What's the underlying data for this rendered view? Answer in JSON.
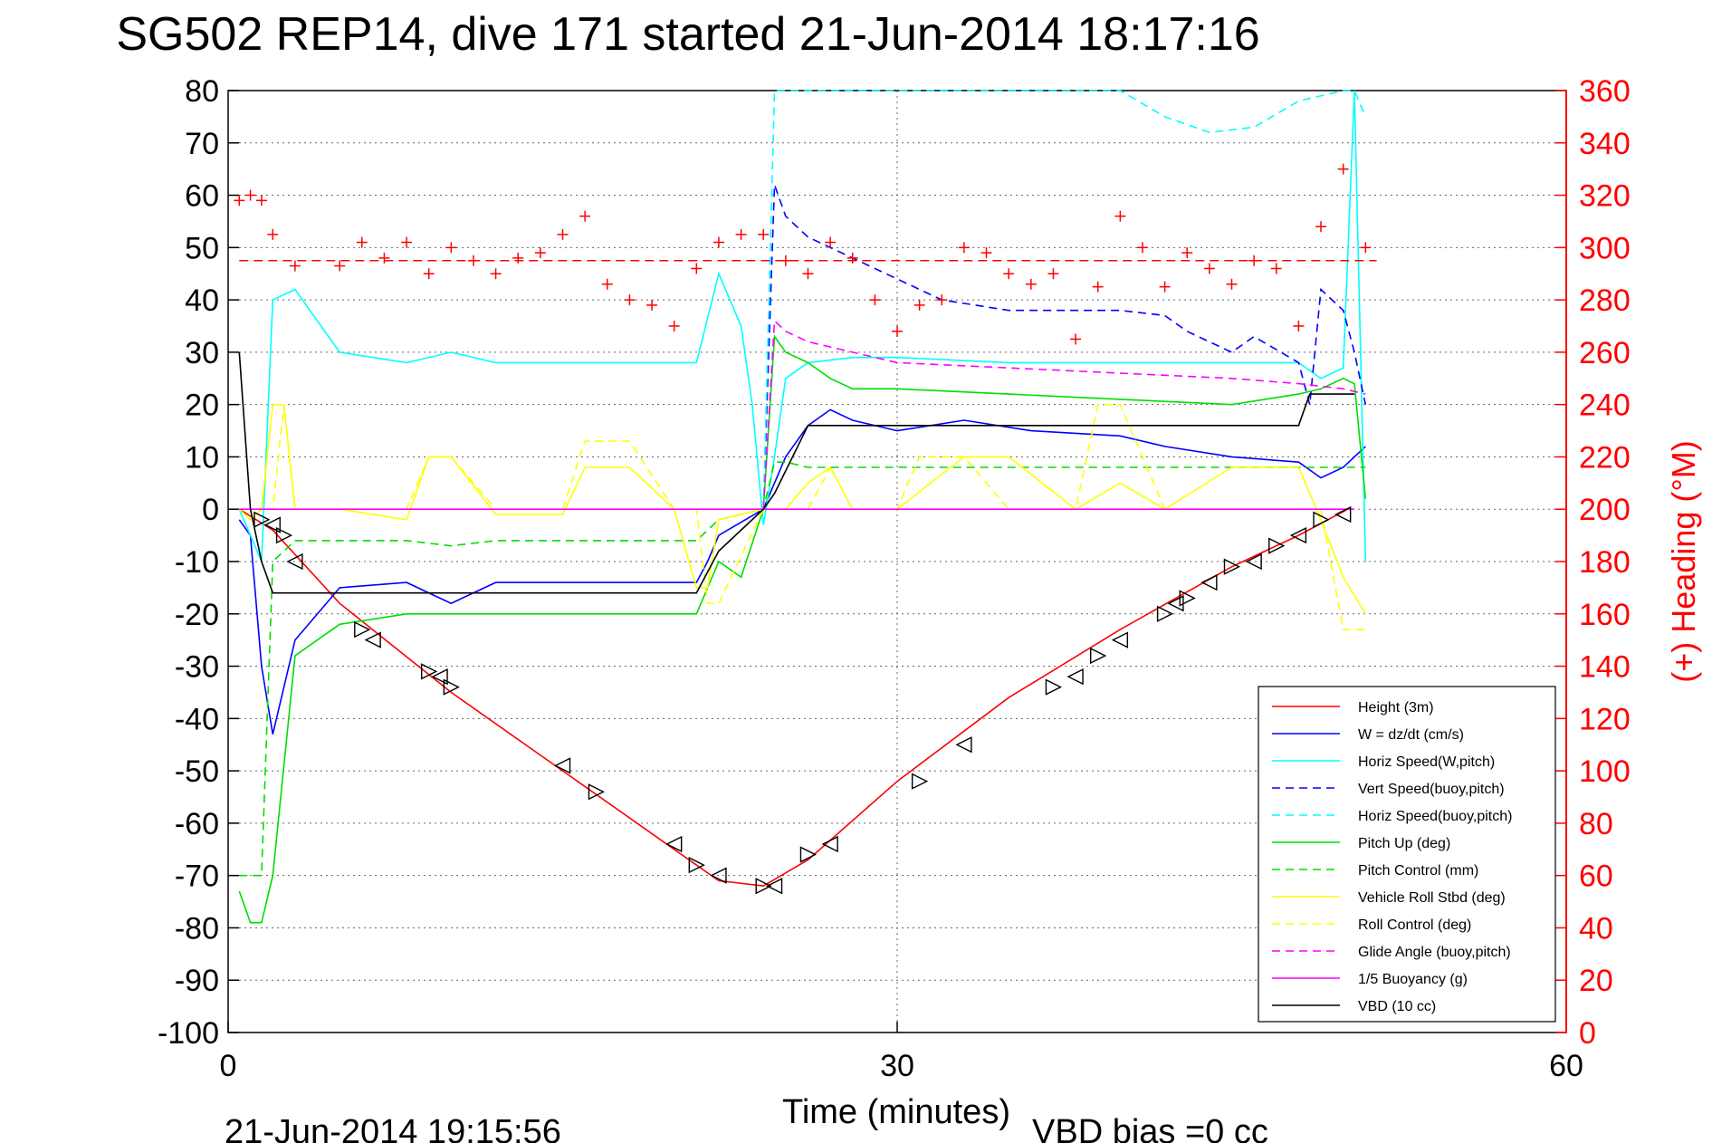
{
  "chart_data": {
    "type": "line",
    "title": "SG502 REP14, dive 171 started 21-Jun-2014 18:17:16",
    "xlabel": "Time (minutes)",
    "ylabel_right": "(+) Heading (°M)",
    "footer_left": "21-Jun-2014 19:15:56",
    "footer_right": "VBD bias =0 cc",
    "xlim": [
      0,
      60
    ],
    "ylim_left": [
      -100,
      80
    ],
    "ylim_right": [
      0,
      360
    ],
    "xticks": [
      "0",
      "30",
      "60"
    ],
    "yticks_left": [
      "80",
      "70",
      "60",
      "50",
      "40",
      "30",
      "20",
      "10",
      "0",
      "-10",
      "-20",
      "-30",
      "-40",
      "-50",
      "-60",
      "-70",
      "-80",
      "-90",
      "-100"
    ],
    "yticks_right": [
      "360",
      "340",
      "320",
      "300",
      "280",
      "260",
      "240",
      "220",
      "200",
      "180",
      "160",
      "140",
      "120",
      "100",
      "80",
      "60",
      "40",
      "20",
      "0"
    ],
    "grid": true,
    "legend_position": "lower-right",
    "colors": {
      "height": "#ff0000",
      "w": "#0000ff",
      "horiz": "#00ffff",
      "pitch": "#00dd00",
      "roll": "#ffff00",
      "glide": "#ff00ff",
      "vbd": "#000000",
      "heading": "#ff0000"
    },
    "legend": [
      {
        "name": "Height (3m)",
        "color": "#ff0000",
        "dash": false
      },
      {
        "name": "W = dz/dt (cm/s)",
        "color": "#0000ff",
        "dash": false
      },
      {
        "name": "Horiz Speed(W,pitch)",
        "color": "#00ffff",
        "dash": false
      },
      {
        "name": "Vert Speed(buoy,pitch)",
        "color": "#0000ff",
        "dash": true
      },
      {
        "name": "Horiz Speed(buoy,pitch)",
        "color": "#00ffff",
        "dash": true
      },
      {
        "name": "Pitch Up (deg)",
        "color": "#00dd00",
        "dash": false
      },
      {
        "name": "Pitch Control (mm)",
        "color": "#00dd00",
        "dash": true
      },
      {
        "name": "Vehicle Roll Stbd (deg)",
        "color": "#ffff00",
        "dash": false
      },
      {
        "name": "Roll Control (deg)",
        "color": "#ffff00",
        "dash": true
      },
      {
        "name": "Glide Angle (buoy,pitch)",
        "color": "#ff00ff",
        "dash": true
      },
      {
        "name": "1/5 Buoyancy (g)",
        "color": "#ff00ff",
        "dash": false
      },
      {
        "name": "VBD (10 cc)",
        "color": "#000000",
        "dash": false
      }
    ],
    "series": [
      {
        "name": "Height (3m)",
        "x": [
          0.5,
          2,
          5,
          10,
          15,
          20,
          22,
          24,
          26,
          30,
          35,
          40,
          45,
          48,
          50.2
        ],
        "y": [
          0,
          -4,
          -18,
          -35,
          -50,
          -65,
          -71,
          -72,
          -67,
          -52,
          -36,
          -23,
          -11,
          -5,
          0
        ]
      },
      {
        "name": "W = dz/dt (cm/s)",
        "x": [
          0.5,
          1,
          1.5,
          2,
          3,
          5,
          8,
          10,
          12,
          15,
          18,
          21,
          21.5,
          22,
          24,
          24.5,
          25,
          26,
          27,
          28,
          30,
          33,
          36,
          40,
          42,
          45,
          48,
          49,
          50,
          50.5,
          51
        ],
        "y": [
          -2,
          -5,
          -30,
          -43,
          -25,
          -15,
          -14,
          -18,
          -14,
          -14,
          -14,
          -14,
          -10,
          -5,
          0,
          5,
          10,
          16,
          19,
          17,
          15,
          17,
          15,
          14,
          12,
          10,
          9,
          6,
          8,
          10,
          12
        ]
      },
      {
        "name": "Horiz Speed(W,pitch)",
        "x": [
          0.5,
          1.5,
          2,
          3,
          5,
          8,
          10,
          12,
          15,
          18,
          21,
          22,
          22.5,
          23,
          23.5,
          24,
          24.5,
          25,
          26,
          28,
          30,
          35,
          40,
          45,
          48,
          49,
          50,
          50.5,
          51
        ],
        "y": [
          0,
          -10,
          40,
          42,
          30,
          28,
          30,
          28,
          28,
          28,
          28,
          45,
          40,
          35,
          20,
          -3,
          10,
          25,
          28,
          29,
          29,
          28,
          28,
          28,
          28,
          25,
          27,
          80,
          -10
        ]
      },
      {
        "name": "Vert Speed(buoy,pitch)",
        "x": [
          24,
          24.5,
          25,
          26,
          28,
          30,
          32,
          35,
          40,
          42,
          43,
          45,
          46,
          48,
          48.5,
          49,
          50,
          50.5,
          51
        ],
        "y": [
          0,
          62,
          56,
          52,
          48,
          44,
          40,
          38,
          38,
          37,
          34,
          30,
          33,
          28,
          20,
          42,
          38,
          30,
          20
        ]
      },
      {
        "name": "Horiz Speed(buoy,pitch)",
        "x": [
          24,
          24.5,
          25,
          40,
          42,
          44,
          46,
          48,
          50,
          50.5,
          51
        ],
        "y": [
          0,
          80,
          80,
          80,
          75,
          72,
          73,
          78,
          80,
          80,
          75
        ]
      },
      {
        "name": "Pitch Up (deg)",
        "x": [
          0.5,
          1,
          1.5,
          2,
          3,
          5,
          8,
          10,
          12,
          15,
          18,
          21,
          22,
          23,
          24,
          24.5,
          25,
          26,
          27,
          28,
          30,
          35,
          40,
          45,
          48,
          49,
          50,
          50.5,
          51
        ],
        "y": [
          -73,
          -79,
          -79,
          -70,
          -28,
          -22,
          -20,
          -20,
          -20,
          -20,
          -20,
          -20,
          -10,
          -13,
          0,
          33,
          30,
          28,
          25,
          23,
          23,
          22,
          21,
          20,
          22,
          23,
          25,
          24,
          2
        ]
      },
      {
        "name": "Pitch Control (mm)",
        "x": [
          0.5,
          1,
          1.5,
          2,
          3,
          5,
          8,
          10,
          12,
          15,
          18,
          21,
          22,
          24,
          24.5,
          25,
          26,
          28,
          30,
          35,
          40,
          45,
          48,
          50,
          51
        ],
        "y": [
          -70,
          -70,
          -70,
          -10,
          -6,
          -6,
          -6,
          -7,
          -6,
          -6,
          -6,
          -6,
          -2,
          0,
          9,
          9,
          8,
          8,
          8,
          8,
          8,
          8,
          8,
          8,
          8
        ]
      },
      {
        "name": "Vehicle Roll Stbd (deg)",
        "x": [
          0.5,
          1,
          1.5,
          2,
          2.5,
          3,
          5,
          8,
          9,
          10,
          12,
          15,
          16,
          18,
          20,
          21,
          21.5,
          22,
          24,
          25,
          26,
          27,
          28,
          30,
          33,
          35,
          38,
          40,
          42,
          45,
          48,
          49,
          50,
          51
        ],
        "y": [
          0,
          -2,
          0,
          20,
          20,
          0,
          0,
          -2,
          10,
          10,
          -1,
          -1,
          8,
          8,
          0,
          -15,
          -15,
          -2,
          0,
          0,
          5,
          8,
          0,
          0,
          10,
          10,
          0,
          5,
          0,
          8,
          8,
          -2,
          -13,
          -20
        ]
      },
      {
        "name": "Roll Control (deg)",
        "x": [
          0.5,
          1,
          2,
          2.5,
          3,
          5,
          8,
          9,
          10,
          12,
          15,
          16,
          18,
          20,
          21,
          21.5,
          22,
          24,
          25,
          26,
          27,
          28,
          30,
          31,
          33,
          35,
          38,
          39,
          40,
          42,
          45,
          48,
          49,
          50,
          51
        ],
        "y": [
          0,
          0,
          0,
          20,
          0,
          0,
          0,
          10,
          10,
          0,
          0,
          13,
          13,
          0,
          0,
          -18,
          -18,
          0,
          0,
          0,
          8,
          0,
          0,
          10,
          10,
          0,
          0,
          20,
          20,
          0,
          0,
          0,
          0,
          -23,
          -23
        ]
      },
      {
        "name": "Glide Angle (buoy,pitch)",
        "x": [
          24,
          24.5,
          25,
          26,
          28,
          30,
          35,
          40,
          45,
          48,
          50,
          51
        ],
        "y": [
          0,
          36,
          34,
          32,
          30,
          28,
          27,
          26,
          25,
          24,
          23,
          22
        ]
      },
      {
        "name": "1/5 Buoyancy (g)",
        "x": [
          0.5,
          50.5
        ],
        "y": [
          0,
          0
        ]
      },
      {
        "name": "VBD (10 cc)",
        "x": [
          0.5,
          1,
          1.5,
          2,
          3,
          5,
          10,
          15,
          20,
          21,
          22,
          24,
          24.5,
          26,
          30,
          35,
          40,
          45,
          48,
          48.5,
          50.5
        ],
        "y": [
          30,
          0,
          -10,
          -16,
          -16,
          -16,
          -16,
          -16,
          -16,
          -16,
          -8,
          0,
          3,
          16,
          16,
          16,
          16,
          16,
          16,
          22,
          22
        ]
      }
    ],
    "heading_series": {
      "name": "Heading",
      "x": [
        0.5,
        1,
        1.5,
        2,
        3,
        5,
        6,
        7,
        8,
        9,
        10,
        11,
        12,
        13,
        14,
        15,
        16,
        17,
        18,
        19,
        20,
        21,
        22,
        23,
        24,
        25,
        26,
        27,
        28,
        29,
        30,
        31,
        32,
        33,
        34,
        35,
        36,
        37,
        38,
        39,
        40,
        41,
        42,
        43,
        44,
        45,
        46,
        47,
        48,
        49,
        50,
        51
      ],
      "y": [
        318,
        320,
        318,
        305,
        293,
        293,
        302,
        296,
        302,
        290,
        300,
        295,
        290,
        296,
        298,
        305,
        312,
        286,
        280,
        278,
        270,
        292,
        302,
        305,
        305,
        295,
        290,
        302,
        296,
        280,
        268,
        278,
        280,
        300,
        298,
        290,
        286,
        290,
        265,
        285,
        312,
        300,
        285,
        298,
        292,
        286,
        295,
        292,
        270,
        308,
        330,
        300
      ]
    },
    "heading_reference": 295,
    "markers": {
      "x": [
        1.5,
        2,
        2.5,
        3,
        6,
        6.5,
        9,
        9.5,
        10,
        15,
        16.5,
        20,
        21,
        22,
        24,
        24.5,
        26,
        27,
        31,
        33,
        37,
        38,
        39,
        40,
        42,
        42.5,
        43,
        44,
        45,
        46,
        47,
        48,
        49,
        50
      ],
      "y": [
        -2,
        -3,
        -5,
        -10,
        -23,
        -25,
        -31,
        -32,
        -34,
        -49,
        -54,
        -64,
        -68,
        -70,
        -72,
        -72,
        -66,
        -64,
        -52,
        -45,
        -34,
        -32,
        -28,
        -25,
        -20,
        -18,
        -17,
        -14,
        -11,
        -10,
        -7,
        -5,
        -2,
        -1
      ]
    }
  }
}
